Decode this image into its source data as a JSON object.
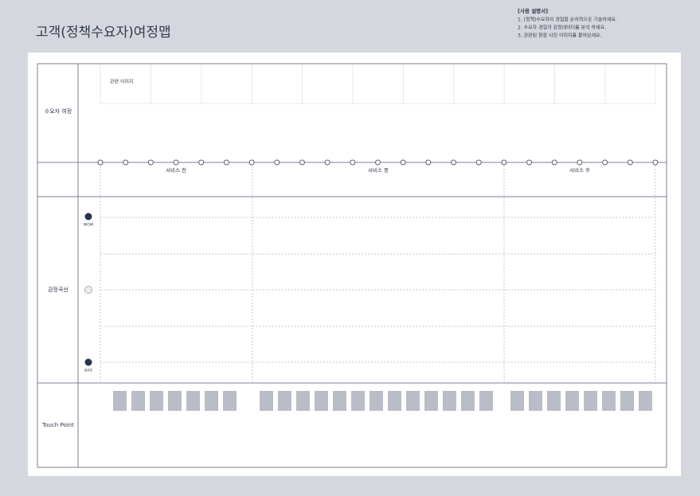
{
  "header": {
    "title": "고객(정책수요자)여정맵"
  },
  "instructions": {
    "heading": "[사용 설명서]",
    "items": [
      "1. (정책)수요자의 경험을 순차적으로 기술하세요.",
      "2. 수요자 경험과 감정데이터를 분석 하세요.",
      "3. 관련된 현장 사진 이미지를 붙여보세요."
    ]
  },
  "rows": [
    "수요자 여정",
    "감정곡선",
    "Touch Point"
  ],
  "image_label": "관련 이미지",
  "phases": [
    "서비스 전",
    "서비스 중",
    "서비스 후"
  ],
  "emotions": {
    "top": "WOW",
    "bottom": "BAD"
  }
}
